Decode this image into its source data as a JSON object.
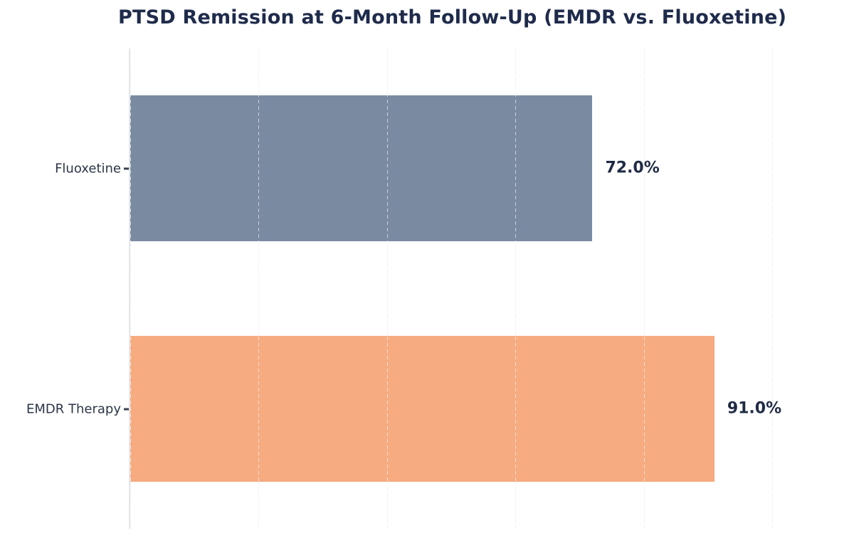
{
  "title": "PTSD Remission at 6-Month Follow-Up (EMDR vs. Fluoxetine)",
  "chart_data": {
    "type": "bar",
    "orientation": "horizontal",
    "categories": [
      "Fluoxetine",
      "EMDR Therapy"
    ],
    "values": [
      72.0,
      91.0
    ],
    "value_labels": [
      "72.0%",
      "91.0%"
    ],
    "bar_colors": [
      "#7A8AA0",
      "#F6AB81"
    ],
    "xlabel": "",
    "ylabel": "",
    "xlim": [
      0,
      100
    ],
    "grid_step": 20,
    "grid": "vertical dashed light",
    "legend": "none",
    "value_labels_position": "outside-end"
  },
  "style_colors": {
    "title_text": "#1F2B4B",
    "category_text": "#2B3648",
    "value_text": "#1F2B45",
    "axis_line": "#E4E7EA",
    "gridline": "#F0F0F0",
    "tick_mark": "#39414F",
    "background": "#FFFFFF"
  }
}
